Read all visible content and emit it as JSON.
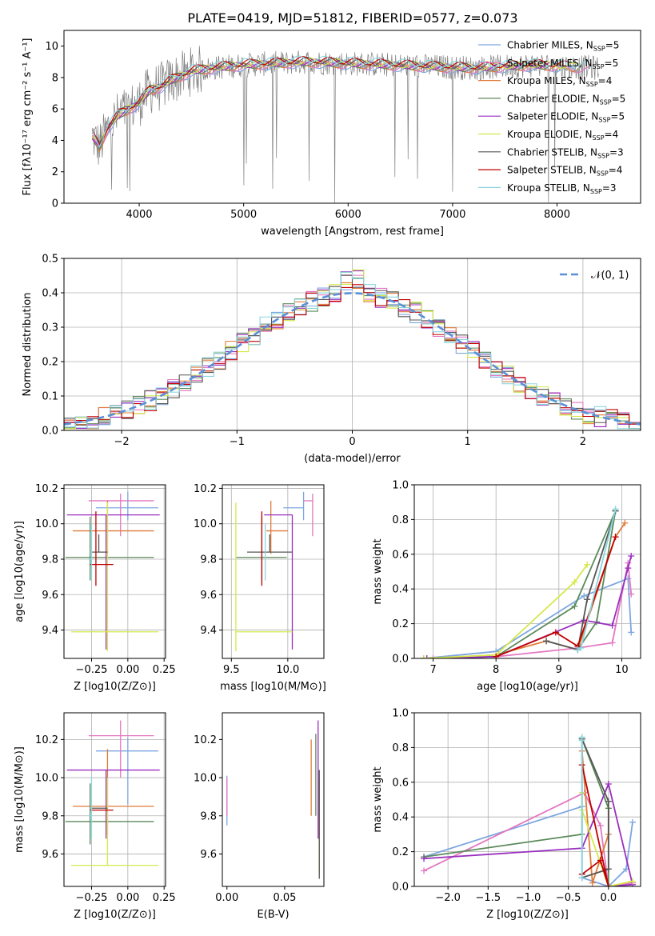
{
  "figure_title": "PLATE=0419, MJD=51812, FIBERID=0577, z=0.073",
  "colors": {
    "chabrier_miles": "#7ea6e0",
    "salpeter_miles": "#e377c2",
    "kroupa_miles": "#e07b39",
    "chabrier_elodie": "#5b8a5b",
    "salpeter_elodie": "#9a2fbf",
    "kroupa_elodie": "#d5e84a",
    "chabrier_stelib": "#555555",
    "salpeter_stelib": "#c00000",
    "kroupa_stelib": "#8ad6e0",
    "observed": "#808080",
    "normal": "#5b8fd6"
  },
  "chart_data": [
    {
      "id": "spectrum",
      "type": "line",
      "title": "PLATE=0419, MJD=51812, FIBERID=0577, z=0.073",
      "xlabel": "wavelength [Angstrom, rest frame]",
      "ylabel": "Flux [fλ10⁻¹⁷ erg cm⁻² s⁻¹ A⁻¹]",
      "xlim": [
        3280,
        8800
      ],
      "ylim": [
        0,
        11
      ],
      "xticks": [
        4000,
        5000,
        6000,
        7000,
        8000
      ],
      "yticks": [
        0,
        2,
        4,
        6,
        8,
        10
      ],
      "grid": false,
      "legend_position": "top-right",
      "legend": [
        "Chabrier MILES, N_SSP=5",
        "Salpeter MILES, N_SSP=5",
        "Kroupa MILES, N_SSP=4",
        "Chabrier ELODIE, N_SSP=5",
        "Salpeter ELODIE, N_SSP=5",
        "Kroupa ELODIE, N_SSP=4",
        "Chabrier STELIB, N_SSP=3",
        "Salpeter STELIB, N_SSP=4",
        "Kroupa STELIB, N_SSP=3"
      ],
      "continuum_x": [
        3550,
        3620,
        3700,
        3800,
        3900,
        4000,
        4100,
        4200,
        4300,
        4400,
        4500,
        4700,
        5000,
        5300,
        5600,
        6000,
        6400,
        6800,
        7200,
        7500,
        7800,
        8100,
        8400
      ],
      "continuum_y": [
        4.3,
        3.6,
        4.8,
        5.6,
        6.0,
        6.4,
        7.2,
        7.4,
        7.8,
        8.1,
        8.4,
        8.6,
        8.8,
        8.9,
        9.0,
        8.9,
        8.8,
        8.7,
        8.6,
        8.7,
        8.8,
        8.7,
        8.6
      ]
    },
    {
      "id": "residuals",
      "type": "histogram",
      "xlabel": "(data-model)/error",
      "ylabel": "Normed distribution",
      "xlim": [
        -2.5,
        2.5
      ],
      "ylim": [
        0,
        0.5
      ],
      "xticks": [
        -2,
        -1,
        0,
        1,
        2
      ],
      "yticks": [
        0.0,
        0.1,
        0.2,
        0.3,
        0.4,
        0.5
      ],
      "grid": true,
      "legend_position": "top-right",
      "legend": [
        "𝒩(0, 1)"
      ],
      "bin_width": 0.1,
      "bins_start": -2.5
    },
    {
      "id": "z_age",
      "type": "errorbar",
      "xlabel": "Z [log10(Z/Z⊙)]",
      "ylabel": "age  [log10(age/yr)]",
      "xlim": [
        -0.44,
        0.26
      ],
      "ylim": [
        9.24,
        10.22
      ],
      "xticks": [
        -0.25,
        0.0,
        0.25
      ],
      "yticks": [
        9.4,
        9.6,
        9.8,
        10.0,
        10.2
      ],
      "grid": true,
      "points": [
        {
          "x": 0.0,
          "y": 10.09,
          "xerr": [
            0.22,
            0.21
          ],
          "yerr": [
            0.07,
            0.09
          ]
        },
        {
          "x": -0.05,
          "y": 10.13,
          "xerr": [
            0.22,
            0.23
          ],
          "yerr": [
            0.2,
            0.04
          ]
        },
        {
          "x": -0.14,
          "y": 9.96,
          "xerr": [
            0.24,
            0.32
          ],
          "yerr": [
            0.13,
            0.17
          ]
        },
        {
          "x": -0.26,
          "y": 9.81,
          "xerr": [
            0.17,
            0.44
          ],
          "yerr": [
            0.13,
            0.23
          ]
        },
        {
          "x": -0.15,
          "y": 10.05,
          "xerr": [
            0.27,
            0.37
          ],
          "yerr": [
            0.76,
            0.0
          ]
        },
        {
          "x": -0.14,
          "y": 9.39,
          "xerr": [
            0.25,
            0.35
          ],
          "yerr": [
            0.11,
            0.73
          ]
        },
        {
          "x": -0.2,
          "y": 9.84,
          "xerr": [
            0.05,
            0.06
          ],
          "yerr": [
            0.0,
            0.1
          ]
        },
        {
          "x": -0.22,
          "y": 9.77,
          "xerr": [
            0.04,
            0.12
          ],
          "yerr": [
            0.12,
            0.3
          ]
        },
        {
          "x": -0.25,
          "y": 9.8,
          "xerr": [
            0.02,
            0.0
          ],
          "yerr": [
            0.12,
            0.2
          ]
        }
      ]
    },
    {
      "id": "mass_age",
      "type": "errorbar",
      "xlabel": "mass [log10(M/M⊙)]",
      "ylabel": "",
      "xlim": [
        9.42,
        10.32
      ],
      "ylim": [
        9.24,
        10.22
      ],
      "xticks": [
        9.5,
        10.0
      ],
      "yticks": [
        9.4,
        9.6,
        9.8,
        10.0,
        10.2
      ],
      "grid": true,
      "points": [
        {
          "x": 10.14,
          "y": 10.09,
          "xerr": [
            0.18,
            0.0
          ],
          "yerr": [
            0.07,
            0.09
          ]
        },
        {
          "x": 10.22,
          "y": 10.13,
          "xerr": [
            0.08,
            0.0
          ],
          "yerr": [
            0.2,
            0.04
          ]
        },
        {
          "x": 9.85,
          "y": 9.96,
          "xerr": [
            0.04,
            0.15
          ],
          "yerr": [
            0.13,
            0.17
          ]
        },
        {
          "x": 9.77,
          "y": 9.81,
          "xerr": [
            0.23,
            0.22
          ],
          "yerr": [
            0.13,
            0.23
          ]
        },
        {
          "x": 10.04,
          "y": 10.05,
          "xerr": [
            0.25,
            0.0
          ],
          "yerr": [
            0.76,
            0.0
          ]
        },
        {
          "x": 9.54,
          "y": 9.39,
          "xerr": [
            0.0,
            0.5
          ],
          "yerr": [
            0.11,
            0.73
          ]
        },
        {
          "x": 9.84,
          "y": 9.84,
          "xerr": [
            0.2,
            0.2
          ],
          "yerr": [
            0.0,
            0.1
          ]
        },
        {
          "x": 9.77,
          "y": 9.77,
          "xerr": [
            0.0,
            0.0
          ],
          "yerr": [
            0.12,
            0.3
          ]
        },
        {
          "x": 9.8,
          "y": 9.8,
          "xerr": [
            0.0,
            0.0
          ],
          "yerr": [
            0.12,
            0.2
          ]
        }
      ]
    },
    {
      "id": "age_weight",
      "type": "line",
      "xlabel": "age  [log10(age/yr)]",
      "ylabel": "mass weight",
      "xlim": [
        6.7,
        10.3
      ],
      "ylim": [
        0,
        1.0
      ],
      "xticks": [
        7,
        8,
        9,
        10
      ],
      "yticks": [
        0.0,
        0.2,
        0.4,
        0.6,
        0.8,
        1.0
      ],
      "grid": true,
      "series": [
        {
          "x": [
            6.85,
            8.0,
            9.4,
            10.1,
            10.15
          ],
          "y": [
            0.0,
            0.04,
            0.36,
            0.46,
            0.15
          ]
        },
        {
          "x": [
            7.0,
            8.0,
            9.3,
            9.85,
            10.1,
            10.15
          ],
          "y": [
            0.0,
            0.01,
            0.06,
            0.09,
            0.55,
            0.37
          ]
        },
        {
          "x": [
            6.9,
            8.0,
            8.8,
            9.3,
            9.9,
            10.05
          ],
          "y": [
            0.0,
            0.02,
            0.1,
            0.05,
            0.7,
            0.78
          ]
        },
        {
          "x": [
            6.85,
            8.0,
            9.25,
            9.9,
            9.6,
            9.3
          ],
          "y": [
            0.0,
            0.01,
            0.3,
            0.85,
            0.21,
            0.05
          ]
        },
        {
          "x": [
            6.9,
            8.0,
            9.4,
            9.85,
            10.1,
            10.15
          ],
          "y": [
            0.0,
            0.01,
            0.22,
            0.19,
            0.52,
            0.59
          ]
        },
        {
          "x": [
            6.85,
            8.0,
            9.25,
            9.45
          ],
          "y": [
            0.0,
            0.02,
            0.44,
            0.54
          ]
        },
        {
          "x": [
            8.8,
            9.3,
            9.45,
            9.9
          ],
          "y": [
            0.1,
            0.05,
            0.34,
            0.85
          ]
        },
        {
          "x": [
            8.0,
            8.95,
            9.3,
            9.9
          ],
          "y": [
            0.01,
            0.15,
            0.07,
            0.7
          ]
        },
        {
          "x": [
            9.3,
            9.35,
            9.9
          ],
          "y": [
            0.05,
            0.06,
            0.86
          ]
        }
      ]
    },
    {
      "id": "z_mass",
      "type": "errorbar",
      "xlabel": "Z [log10(Z/Z⊙)]",
      "ylabel": "mass [log10(M/M⊙)]",
      "xlim": [
        -0.44,
        0.26
      ],
      "ylim": [
        9.43,
        10.34
      ],
      "xticks": [
        -0.25,
        0.0,
        0.25
      ],
      "yticks": [
        9.6,
        9.8,
        10.0,
        10.2
      ],
      "grid": true,
      "points": [
        {
          "x": 0.0,
          "y": 10.14,
          "xerr": [
            0.22,
            0.21
          ],
          "yerr": [
            0.28,
            0.07
          ]
        },
        {
          "x": -0.05,
          "y": 10.22,
          "xerr": [
            0.22,
            0.23
          ],
          "yerr": [
            0.22,
            0.08
          ]
        },
        {
          "x": -0.14,
          "y": 9.85,
          "xerr": [
            0.24,
            0.32
          ],
          "yerr": [
            0.15,
            0.3
          ]
        },
        {
          "x": -0.26,
          "y": 9.77,
          "xerr": [
            0.17,
            0.44
          ],
          "yerr": [
            0.12,
            0.2
          ]
        },
        {
          "x": -0.15,
          "y": 10.04,
          "xerr": [
            0.27,
            0.37
          ],
          "yerr": [
            0.36,
            0.0
          ]
        },
        {
          "x": -0.14,
          "y": 9.54,
          "xerr": [
            0.25,
            0.35
          ],
          "yerr": [
            0.0,
            0.46
          ]
        },
        {
          "x": -0.2,
          "y": 9.84,
          "xerr": [
            0.05,
            0.06
          ],
          "yerr": [
            0.0,
            0.0
          ]
        },
        {
          "x": -0.22,
          "y": 9.83,
          "xerr": [
            0.04,
            0.12
          ],
          "yerr": [
            0.0,
            0.0
          ]
        },
        {
          "x": -0.25,
          "y": 9.8,
          "xerr": [
            0.02,
            0.0
          ],
          "yerr": [
            0.12,
            0.2
          ]
        }
      ]
    },
    {
      "id": "ebv_mass",
      "type": "errorbar",
      "xlabel": "E(B-V)",
      "ylabel": "",
      "xlim": [
        -0.004,
        0.084
      ],
      "ylim": [
        9.43,
        10.34
      ],
      "xticks": [
        0.0,
        0.05
      ],
      "yticks": [
        9.6,
        9.8,
        10.0,
        10.2
      ],
      "grid": false,
      "points": [
        {
          "x": 0.0,
          "y": 9.85,
          "xerr": [
            0.0,
            0.0
          ],
          "yerr": [
            0.1,
            0.16
          ]
        },
        {
          "x": 0.0,
          "y": 9.8,
          "xerr": [
            0.0,
            0.0
          ],
          "yerr": [
            0.0,
            0.2
          ]
        },
        {
          "x": 0.073,
          "y": 10.0,
          "xerr": [
            0.0,
            0.0
          ],
          "yerr": [
            0.2,
            0.2
          ]
        },
        {
          "x": 0.077,
          "y": 10.0,
          "xerr": [
            0.0,
            0.0
          ],
          "yerr": [
            0.2,
            0.23
          ]
        },
        {
          "x": 0.079,
          "y": 10.04,
          "xerr": [
            0.0,
            0.0
          ],
          "yerr": [
            0.36,
            0.26
          ]
        },
        {
          "x": 0.08,
          "y": 9.54,
          "xerr": [
            0.0,
            0.0
          ],
          "yerr": [
            0.04,
            0.45
          ]
        },
        {
          "x": 0.08,
          "y": 9.8,
          "xerr": [
            0.0,
            0.0
          ],
          "yerr": [
            0.33,
            0.24
          ]
        }
      ]
    },
    {
      "id": "z_weight",
      "type": "line",
      "xlabel": "Z [log10(Z/Z⊙)]",
      "ylabel": "mass weight",
      "xlim": [
        -2.42,
        0.4
      ],
      "ylim": [
        0,
        1.0
      ],
      "xticks": [
        -2.0,
        -1.5,
        -1.0,
        -0.5,
        0.0
      ],
      "yticks": [
        0.0,
        0.2,
        0.4,
        0.6,
        0.8,
        1.0
      ],
      "grid": true,
      "series": [
        {
          "x": [
            -2.3,
            -0.33,
            -0.33,
            0.0,
            0.22,
            0.3
          ],
          "y": [
            0.17,
            0.46,
            0.05,
            0.0,
            0.1,
            0.37
          ]
        },
        {
          "x": [
            -2.3,
            -0.3,
            -0.1,
            0.0,
            0.3
          ],
          "y": [
            0.09,
            0.54,
            0.35,
            0.0,
            0.02
          ]
        },
        {
          "x": [
            -0.33,
            -0.2,
            0.0,
            0.0
          ],
          "y": [
            0.78,
            0.02,
            0.3,
            0.45
          ]
        },
        {
          "x": [
            -2.3,
            -0.33,
            -0.33,
            0.0,
            0.0
          ],
          "y": [
            0.17,
            0.3,
            0.85,
            0.45,
            0.0
          ]
        },
        {
          "x": [
            -2.3,
            -0.33,
            0.0,
            0.3,
            0.0
          ],
          "y": [
            0.16,
            0.22,
            0.59,
            0.01,
            0.0
          ]
        },
        {
          "x": [
            -0.33,
            -0.33,
            0.0,
            0.3
          ],
          "y": [
            0.54,
            0.44,
            0.0,
            0.03
          ]
        },
        {
          "x": [
            -0.33,
            0.0,
            0.0,
            -0.33
          ],
          "y": [
            0.05,
            0.1,
            0.49,
            0.85
          ]
        },
        {
          "x": [
            -0.33,
            -0.1,
            0.0,
            -0.33
          ],
          "y": [
            0.07,
            0.15,
            0.0,
            0.7
          ]
        },
        {
          "x": [
            -0.33,
            -0.33,
            -0.33
          ],
          "y": [
            0.05,
            0.86,
            0.84
          ]
        }
      ]
    }
  ]
}
